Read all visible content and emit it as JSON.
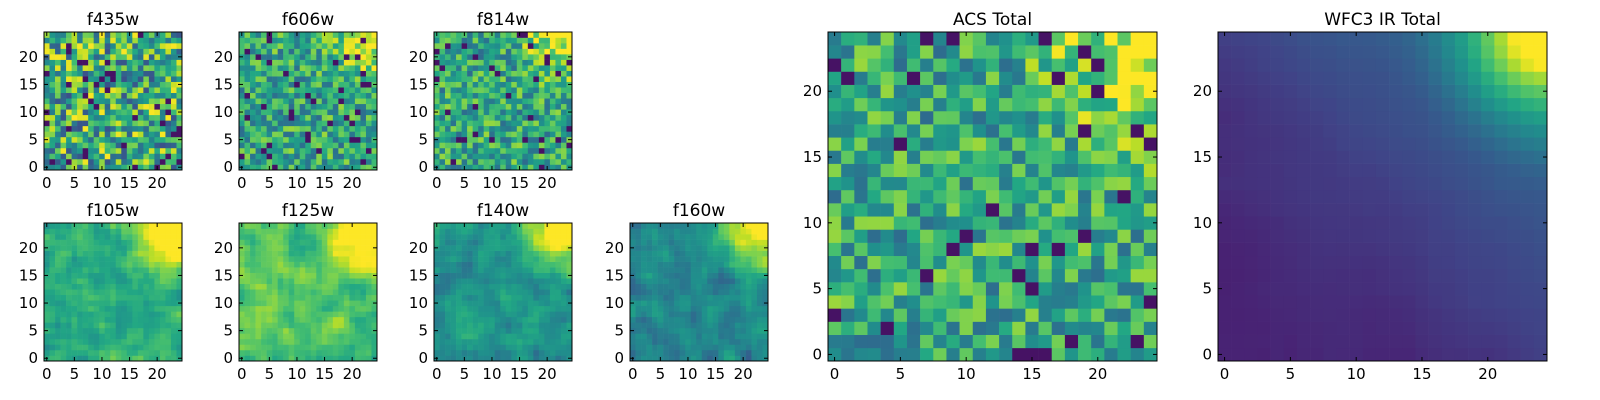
{
  "figure": {
    "colormap": "viridis",
    "background": "#ffffff",
    "panel_count": 9
  },
  "chart_data": [
    {
      "type": "heatmap",
      "title": "f435w",
      "size": 25,
      "xticks": [
        0,
        5,
        10,
        15,
        20
      ],
      "yticks": [
        0,
        5,
        10,
        15,
        20
      ],
      "xlim": [
        -0.5,
        24.5
      ],
      "ylim": [
        -0.5,
        24.5
      ],
      "pattern": "noise",
      "bias": 0.35,
      "seed": 11
    },
    {
      "type": "heatmap",
      "title": "f606w",
      "size": 25,
      "xticks": [
        0,
        5,
        10,
        15,
        20
      ],
      "yticks": [
        0,
        5,
        10,
        15,
        20
      ],
      "xlim": [
        -0.5,
        24.5
      ],
      "ylim": [
        -0.5,
        24.5
      ],
      "pattern": "noise_corner",
      "bias": 0.3,
      "seed": 23
    },
    {
      "type": "heatmap",
      "title": "f814w",
      "size": 25,
      "xticks": [
        0,
        5,
        10,
        15,
        20
      ],
      "yticks": [
        0,
        5,
        10,
        15,
        20
      ],
      "xlim": [
        -0.5,
        24.5
      ],
      "ylim": [
        -0.5,
        24.5
      ],
      "pattern": "noise_corner",
      "bias": 0.2,
      "seed": 37
    },
    {
      "type": "heatmap",
      "title": "f105w",
      "size": 25,
      "xticks": [
        0,
        5,
        10,
        15,
        20
      ],
      "yticks": [
        0,
        5,
        10,
        15,
        20
      ],
      "xlim": [
        -0.5,
        24.5
      ],
      "ylim": [
        -0.5,
        24.5
      ],
      "pattern": "smooth_corner",
      "bias": 0.2,
      "seed": 41
    },
    {
      "type": "heatmap",
      "title": "f125w",
      "size": 25,
      "xticks": [
        0,
        5,
        10,
        15,
        20
      ],
      "yticks": [
        0,
        5,
        10,
        15,
        20
      ],
      "xlim": [
        -0.5,
        24.5
      ],
      "ylim": [
        -0.5,
        24.5
      ],
      "pattern": "smooth_corner",
      "bias": 0.3,
      "seed": 53
    },
    {
      "type": "heatmap",
      "title": "f140w",
      "size": 25,
      "xticks": [
        0,
        5,
        10,
        15,
        20
      ],
      "yticks": [
        0,
        5,
        10,
        15,
        20
      ],
      "xlim": [
        -0.5,
        24.5
      ],
      "ylim": [
        -0.5,
        24.5
      ],
      "pattern": "smooth_corner",
      "bias": 0.1,
      "seed": 67
    },
    {
      "type": "heatmap",
      "title": "f160w",
      "size": 25,
      "xticks": [
        0,
        5,
        10,
        15,
        20
      ],
      "yticks": [
        0,
        5,
        10,
        15,
        20
      ],
      "xlim": [
        -0.5,
        24.5
      ],
      "ylim": [
        -0.5,
        24.5
      ],
      "pattern": "smooth_corner",
      "bias": 0.05,
      "seed": 79
    },
    {
      "type": "heatmap",
      "title": "ACS Total",
      "size": 25,
      "xticks": [
        0,
        5,
        10,
        15,
        20
      ],
      "yticks": [
        0,
        5,
        10,
        15,
        20
      ],
      "xlim": [
        -0.5,
        24.5
      ],
      "ylim": [
        -0.5,
        24.5
      ],
      "pattern": "noise_corner",
      "bias": 0.25,
      "seed": 97
    },
    {
      "type": "heatmap",
      "title": "WFC3 IR Total",
      "size": 25,
      "xticks": [
        0,
        5,
        10,
        15,
        20
      ],
      "yticks": [
        0,
        5,
        10,
        15,
        20
      ],
      "xlim": [
        -0.5,
        24.5
      ],
      "ylim": [
        -0.5,
        24.5
      ],
      "pattern": "gradient_corner",
      "bias": 0.0,
      "seed": 101
    }
  ]
}
